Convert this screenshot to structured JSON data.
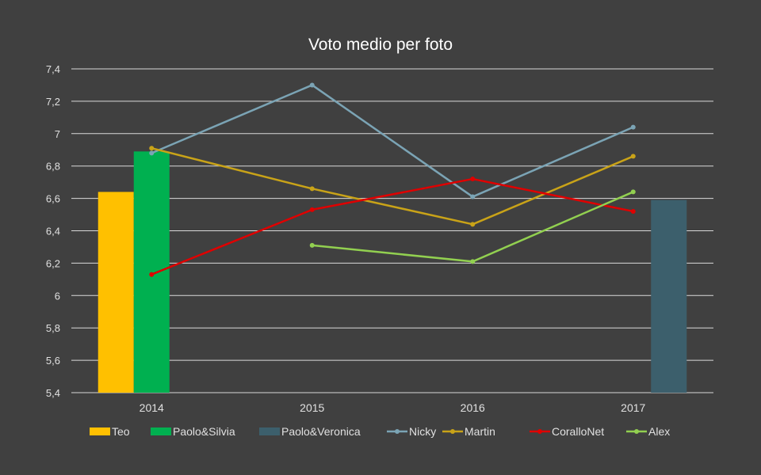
{
  "chart_data": {
    "type": "bar+line",
    "title": "Voto medio per foto",
    "categories": [
      "2014",
      "2015",
      "2016",
      "2017"
    ],
    "ylim": [
      5.4,
      7.4
    ],
    "yticks": [
      "5,4",
      "5,6",
      "5,8",
      "6",
      "6,2",
      "6,4",
      "6,6",
      "6,8",
      "7",
      "7,2",
      "7,4"
    ],
    "grid": true,
    "legend_position": "bottom",
    "bar_series": [
      {
        "name": "Teo",
        "color": "#FFC000",
        "values": [
          6.64,
          null,
          null,
          null
        ]
      },
      {
        "name": "Paolo&Silvia",
        "color": "#00B050",
        "values": [
          6.89,
          null,
          null,
          null
        ]
      },
      {
        "name": "Paolo&Veronica",
        "color": "#3C5F6C",
        "values": [
          null,
          null,
          null,
          6.59
        ]
      }
    ],
    "line_series": [
      {
        "name": "Nicky",
        "color": "#7BA4B5",
        "values": [
          6.88,
          7.3,
          6.61,
          7.04
        ]
      },
      {
        "name": "Martin",
        "color": "#C9A318",
        "values": [
          6.91,
          6.66,
          6.44,
          6.86
        ]
      },
      {
        "name": "CoralloNet",
        "color": "#E00000",
        "values": [
          6.13,
          6.53,
          6.72,
          6.52
        ]
      },
      {
        "name": "Alex",
        "color": "#92D050",
        "values": [
          null,
          6.31,
          6.21,
          6.64
        ]
      }
    ]
  },
  "colors": {
    "background": "#404040",
    "gridline": "#D9D9D9",
    "text": "#FFFFFF",
    "tick_text": "#E0E0E0"
  }
}
